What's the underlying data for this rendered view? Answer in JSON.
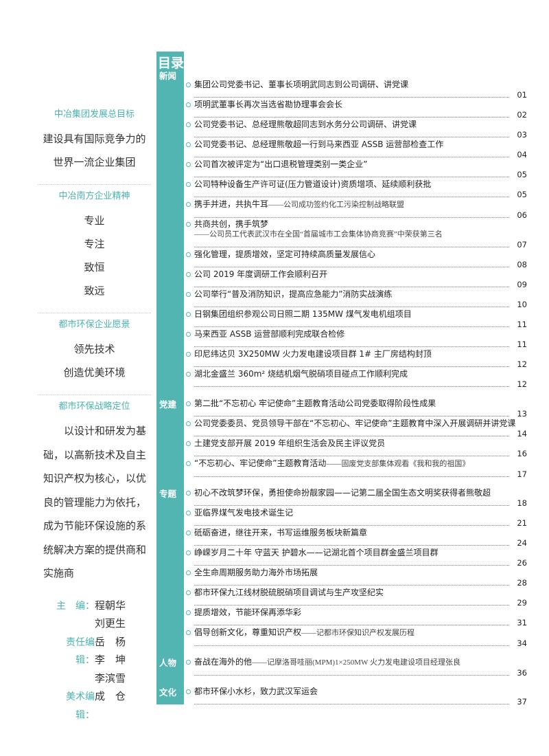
{
  "left": {
    "sections": [
      {
        "heading": "中冶集团发展总目标",
        "lines": [
          "建设具有国际竞争力的",
          "世界一流企业集团"
        ]
      },
      {
        "heading": "中冶南方企业精神",
        "lines": [
          "专业",
          "专注",
          "致恒",
          "致远"
        ]
      },
      {
        "heading": "都市环保企业愿景",
        "lines": [
          "领先技术",
          "创造优美环境"
        ]
      },
      {
        "heading": "都市环保战略定位",
        "paragraph": [
          "以设计和研发为基",
          "础，以高新技术及自主",
          "知识产权为核心，以优",
          "良的管理能力为依托，",
          "成为节能环保设施的系",
          "统解决方案的提供商和",
          "实施商"
        ]
      }
    ],
    "staff": [
      {
        "role": "主　编：",
        "names": [
          "程朝华",
          "刘更生"
        ]
      },
      {
        "role": "责任编辑：",
        "names": [
          "岳　杨",
          "李　坤",
          "李滨雪"
        ]
      },
      {
        "role": "美术编辑：",
        "names": [
          "成　仓"
        ]
      }
    ]
  },
  "toc": {
    "title": "目录",
    "sections": [
      {
        "label": "新闻",
        "entries": [
          {
            "title": "集团公司党委书记、董事长项明武同志到公司调研、讲党课",
            "page": "01"
          },
          {
            "title": "项明武董事长再次当选省勘协理事会会长",
            "page": "02"
          },
          {
            "title": "公司党委书记、总经理熊敬超同志到水务分公司调研、讲党课",
            "page": "03"
          },
          {
            "title": "公司党委书记、总经理熊敬超一行到马来西亚 ASSB 运营部检查工作",
            "page": "04"
          },
          {
            "title": "公司首次被评定为“出口退税管理类别一类企业”",
            "page": "05"
          },
          {
            "title": "公司特种设备生产许可证(压力管道设计)资质增项、延续顺利获批",
            "page": "05"
          },
          {
            "title": "携手并进，共执牛耳",
            "subtitle": "——公司成功签约化工污染控制战略联盟",
            "page": "06"
          },
          {
            "title": "共商共创，携手筑梦",
            "subtitle": "——公司员工代表武汉市在全国“首届城市工会集体协商竞赛”中荣获第三名",
            "page": "07"
          },
          {
            "title": "强化管理，提质增效，坚定可持续高质量发展信心",
            "page": "08"
          },
          {
            "title": "公司 2019 年度调研工作会顺利召开",
            "page": "09"
          },
          {
            "title": "公司举行“普及消防知识，提高应急能力”消防实战演练",
            "page": "10"
          },
          {
            "title": "日钢集团组织参观公司日照二期 135MW 煤气发电机组项目",
            "page": "11"
          },
          {
            "title": "马来西亚 ASSB 运营部顺利完成联合检修",
            "page": "11"
          },
          {
            "title": "印尼纬达贝 3X250MW 火力发电建设项目群 1# 主厂房结构封顶",
            "page": "12"
          },
          {
            "title": "湖北金盛兰 360m² 烧结机烟气脱硝项目碰点工作顺利完成",
            "page": "12"
          }
        ]
      },
      {
        "label": "党建",
        "entries": [
          {
            "title": "第二批“不忘初心 牢记使命”主题教育活动公司党委取得阶段性成果",
            "page": "13"
          },
          {
            "title": "公司党委委员、党员领导干部在“不忘初心、牢记使命”主题教育中深入开展调研并讲党课",
            "page": "14"
          },
          {
            "title": "土建党支部开展 2019 年组织生活会及民主评议党员",
            "page": "16"
          },
          {
            "title": "“不忘初心、牢记使命”主题教育活动",
            "subtitle": "——固废党支部集体观看《我和我的祖国》",
            "page": "17"
          }
        ]
      },
      {
        "label": "专题",
        "entries": [
          {
            "title": "初心不改筑梦环保，勇担使命扮靓家园——记第二届全国生态文明奖获得者熊敬超",
            "page": "18"
          },
          {
            "title": "亚临界煤气发电技术诞生记",
            "page": "21"
          },
          {
            "title": "砥砺奋进，继往开来，书写运维服务板块新篇章",
            "page": "24"
          },
          {
            "title": "峥嵘岁月二十年 守蓝天 护碧水——记湖北首个项目群金盛兰项目群",
            "page": "26"
          },
          {
            "title": "全生命周期服务助力海外市场拓展",
            "page": "28"
          },
          {
            "title": "都市环保九江线材脱硫脱硝项目调试与生产攻坚纪实",
            "page": "29"
          },
          {
            "title": "提质增效，节能环保再添华彩",
            "page": "31"
          },
          {
            "title": "倡导创新文化，尊重知识产权",
            "subtitle": "——记都市环保知识产权发展历程",
            "page": "34"
          }
        ]
      },
      {
        "label": "人物",
        "entries": [
          {
            "title": "奋战在海外的他",
            "subtitle": "——记摩洛哥哇丽(MPM)1×250MW 火力发电建设项目经理张良",
            "page": "36"
          }
        ]
      },
      {
        "label": "文化",
        "entries": [
          {
            "title": "都市环保小水杉，致力武汉军运会",
            "page": "37"
          }
        ]
      }
    ]
  }
}
